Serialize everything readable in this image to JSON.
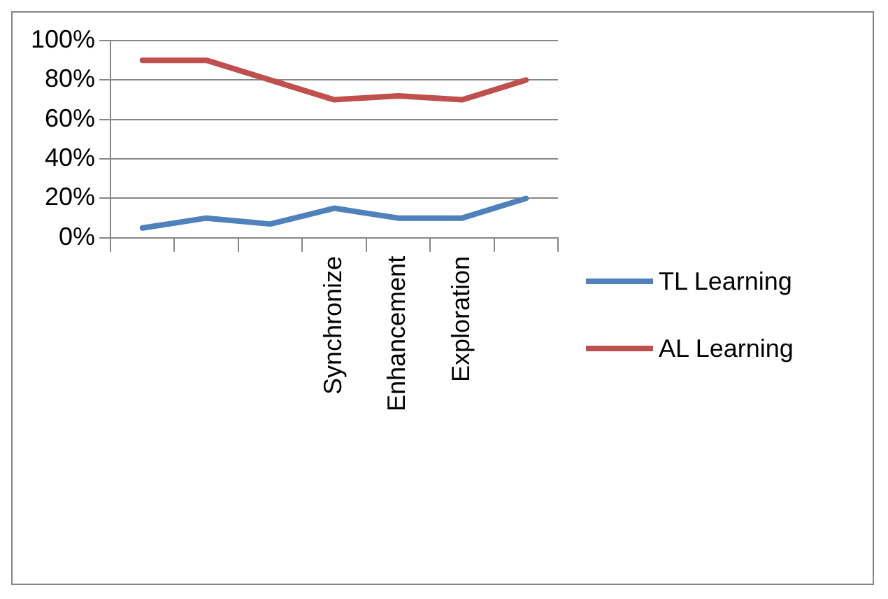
{
  "chart_data": {
    "type": "line",
    "categories": [
      null,
      null,
      null,
      "Synchronize",
      "Enhancement",
      "Exploration",
      null
    ],
    "series": [
      {
        "name": "TL Learning",
        "color": "#4f81bd",
        "values": [
          5,
          10,
          7,
          15,
          10,
          10,
          20
        ]
      },
      {
        "name": "AL Learning",
        "color": "#c0504d",
        "values": [
          90,
          90,
          80,
          70,
          72,
          70,
          80
        ]
      }
    ],
    "ylim": [
      0,
      100
    ],
    "yticks": [
      {
        "value": 0,
        "label": "0%"
      },
      {
        "value": 20,
        "label": "20%"
      },
      {
        "value": 40,
        "label": "40%"
      },
      {
        "value": 60,
        "label": "60%"
      },
      {
        "value": 80,
        "label": "80%"
      },
      {
        "value": 100,
        "label": "100%"
      }
    ],
    "grid": "y",
    "legend": "right",
    "marker": "none"
  }
}
